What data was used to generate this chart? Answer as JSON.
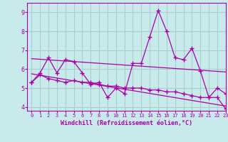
{
  "bg_color": "#c8eaea",
  "grid_color": "#a8cece",
  "line_color": "#aa00aa",
  "xlabel": "Windchill (Refroidissement éolien,°C)",
  "xlim": [
    -0.5,
    23
  ],
  "ylim": [
    3.8,
    9.5
  ],
  "yticks": [
    4,
    5,
    6,
    7,
    8,
    9
  ],
  "xticks": [
    0,
    1,
    2,
    3,
    4,
    5,
    6,
    7,
    8,
    9,
    10,
    11,
    12,
    13,
    14,
    15,
    16,
    17,
    18,
    19,
    20,
    21,
    22,
    23
  ],
  "series1_x": [
    0,
    1,
    2,
    3,
    4,
    5,
    6,
    7,
    8,
    9,
    10,
    11,
    12,
    13,
    14,
    15,
    16,
    17,
    18,
    19,
    20,
    21,
    22,
    23
  ],
  "series1_y": [
    5.3,
    5.8,
    6.6,
    5.8,
    6.5,
    6.4,
    5.8,
    5.2,
    5.3,
    4.5,
    5.0,
    4.7,
    6.3,
    6.3,
    7.7,
    9.1,
    8.0,
    6.6,
    6.5,
    7.1,
    5.9,
    4.5,
    5.0,
    4.7
  ],
  "series2_x": [
    0,
    1,
    2,
    3,
    4,
    5,
    6,
    7,
    8,
    9,
    10,
    11,
    12,
    13,
    14,
    15,
    16,
    17,
    18,
    19,
    20,
    21,
    22,
    23
  ],
  "series2_y": [
    5.3,
    5.7,
    5.5,
    5.4,
    5.3,
    5.4,
    5.3,
    5.3,
    5.2,
    5.1,
    5.1,
    5.0,
    5.0,
    5.0,
    4.9,
    4.9,
    4.8,
    4.8,
    4.7,
    4.6,
    4.5,
    4.5,
    4.5,
    3.9
  ],
  "trend1_x": [
    0,
    23
  ],
  "trend1_y": [
    6.55,
    5.85
  ],
  "trend2_x": [
    0,
    23
  ],
  "trend2_y": [
    5.75,
    4.05
  ]
}
